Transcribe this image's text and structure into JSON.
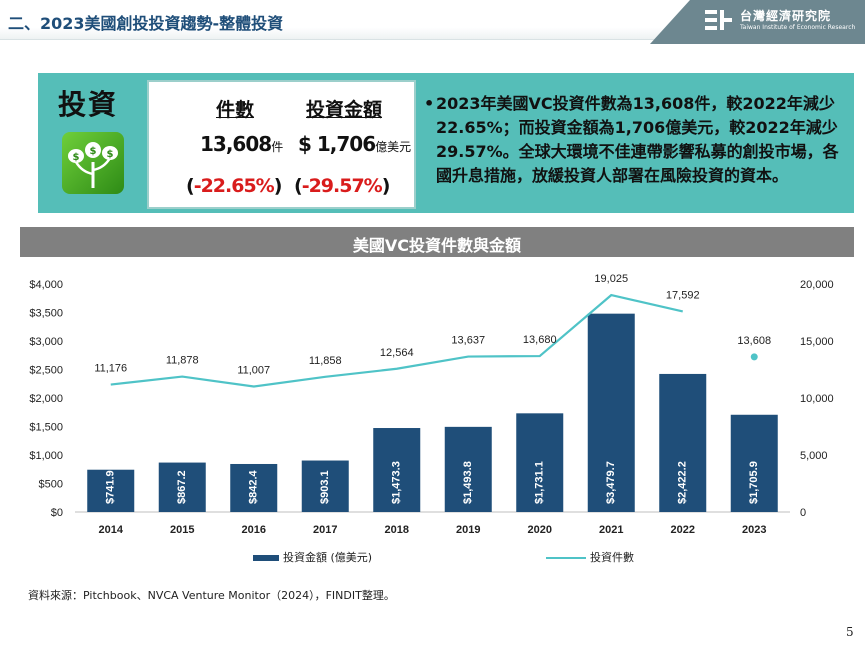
{
  "header": {
    "title": "二、2023美國創投投資趨勢-整體投資",
    "logo_name": "台灣經濟研究院",
    "logo_sub": "Taiwan Institute of Economic Research"
  },
  "panel": {
    "title": "投資",
    "count_header": "件數",
    "amount_header": "投資金額",
    "count_value": "13,608",
    "count_unit": "件",
    "amount_value": "$ 1,706",
    "amount_unit": "億美元",
    "count_change": "-22.65%",
    "amount_change": "-29.57%",
    "summary": "2023年美國VC投資件數為13,608件，較2022年減少22.65%；而投資金額為1,706億美元，較2022年減少29.57%。全球大環境不佳連帶影響私募的創投市場，各國升息措施，放緩投資人部署在風險投資的資本。"
  },
  "chart_data": {
    "type": "bar",
    "title": "美國VC投資件數與金額",
    "categories": [
      "2014",
      "2015",
      "2016",
      "2017",
      "2018",
      "2019",
      "2020",
      "2021",
      "2022",
      "2023"
    ],
    "series": [
      {
        "name": "投資金額 (億美元)",
        "type": "bar",
        "axis": "left",
        "color": "#1f4e79",
        "values": [
          741.9,
          867.2,
          842.4,
          903.1,
          1473.3,
          1493.8,
          1731.1,
          3479.7,
          2422.2,
          1705.9
        ],
        "labels": [
          "$741.9",
          "$867.2",
          "$842.4",
          "$903.1",
          "$1,473.3",
          "$1,493.8",
          "$1,731.1",
          "$3,479.7",
          "$2,422.2",
          "$1,705.9"
        ]
      },
      {
        "name": "投資件數",
        "type": "line",
        "axis": "right",
        "color": "#4fc3c7",
        "values": [
          11176,
          11878,
          11007,
          11858,
          12564,
          13637,
          13680,
          19025,
          17592,
          13608
        ],
        "labels": [
          "11,176",
          "11,878",
          "11,007",
          "11,858",
          "12,564",
          "13,637",
          "13,680",
          "19,025",
          "17,592",
          "13,608"
        ]
      }
    ],
    "left_ticks": [
      "$0",
      "$500",
      "$1,000",
      "$1,500",
      "$2,000",
      "$2,500",
      "$3,000",
      "$3,500",
      "$4,000"
    ],
    "right_ticks": [
      "0",
      "5,000",
      "10,000",
      "15,000",
      "20,000"
    ],
    "ylim_left": [
      0,
      4000
    ],
    "ylim_right": [
      0,
      20000
    ],
    "legend_position": "bottom"
  },
  "source": "資料來源：Pitchbook、NVCA Venture Monitor（2024），FINDIT整理。",
  "page_number": "5",
  "colors": {
    "teal_panel": "#55beb8",
    "bar": "#1f4e79",
    "line": "#4fc3c7",
    "accent_red": "#d91c1c"
  }
}
